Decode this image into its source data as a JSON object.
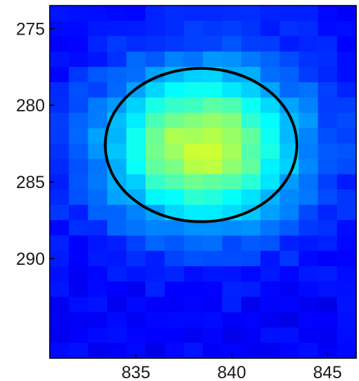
{
  "chart_data": {
    "type": "heatmap",
    "title": "",
    "xlabel": "",
    "ylabel": "",
    "colormap": "jet",
    "xlim": [
      830.5,
      846.5
    ],
    "ylim": [
      273.5,
      296.5
    ],
    "y_reversed": true,
    "x_ticks": [
      835,
      840,
      845
    ],
    "y_ticks": [
      275,
      280,
      285,
      290
    ],
    "x_tick_labels": [
      "835",
      "840",
      "845"
    ],
    "y_tick_labels": [
      "275",
      "280",
      "285",
      "290"
    ],
    "source": {
      "center_x": 838.5,
      "center_y": 282.7,
      "peak_intensity": 0.58,
      "background_intensity": 0.12
    },
    "aperture_circle": {
      "center_x": 838.4,
      "center_y": 282.6,
      "radius": 5.0,
      "color": "#000000"
    },
    "frame_color": "#000000"
  }
}
